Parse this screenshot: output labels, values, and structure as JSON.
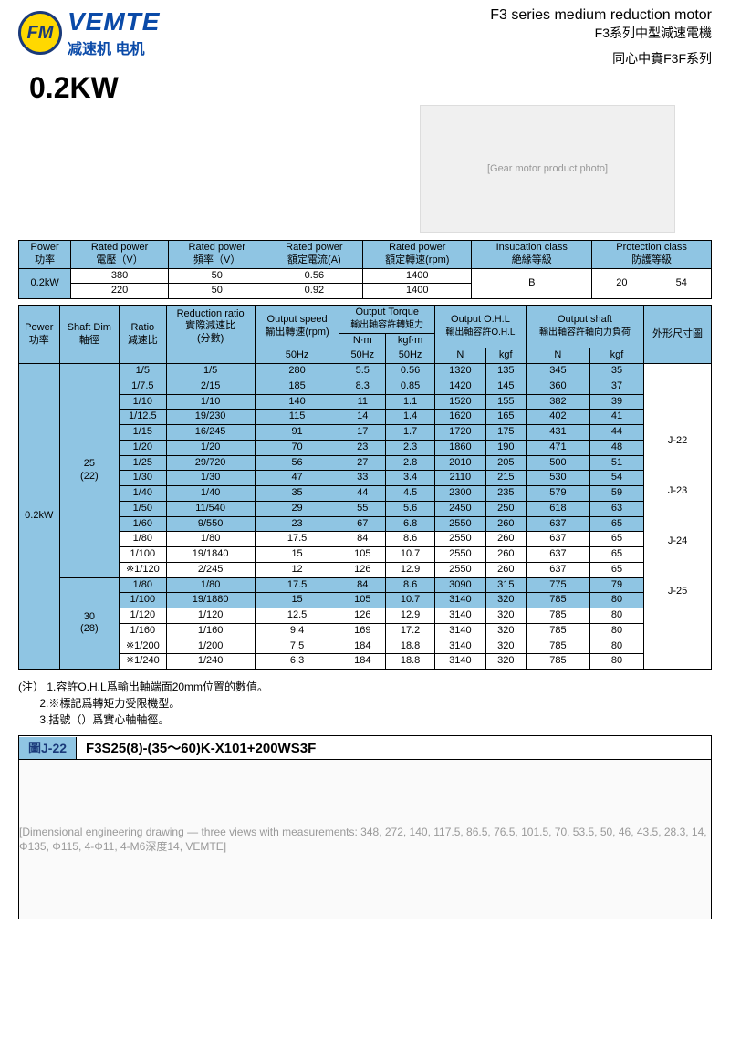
{
  "brand": {
    "logo": "FM",
    "en": "VEMTE",
    "cn": "减速机 电机"
  },
  "title": {
    "en": "F3 series medium reduction motor",
    "cn": "F3系列中型減速電機",
    "sub": "同心中實F3F系列"
  },
  "power_label": "0.2KW",
  "product_img_alt": "[Gear motor product photo]",
  "t1": {
    "h": {
      "power": "Power",
      "power_cn": "功率",
      "voltage": "Rated power",
      "voltage_cn": "電壓（V）",
      "freq": "Rated power",
      "freq_cn": "頻率（V）",
      "current": "Rated power",
      "current_cn": "額定電流(A)",
      "speed": "Rated power",
      "speed_cn": "額定轉速(rpm)",
      "ins": "Insucation class",
      "ins_cn": "絶緣等級",
      "prot": "Protection class",
      "prot_cn": "防護等級"
    },
    "power": "0.2kW",
    "r1": {
      "v": "380",
      "f": "50",
      "a": "0.56",
      "rpm": "1400"
    },
    "r2": {
      "v": "220",
      "f": "50",
      "a": "0.92",
      "rpm": "1400"
    },
    "ins": "B",
    "prot1": "20",
    "prot2": "54"
  },
  "t2h": {
    "power": "Power",
    "power_cn": "功率",
    "shaft": "Shaft Dim",
    "shaft_cn": "軸徑",
    "ratio": "Ratio",
    "ratio_cn": "減速比",
    "rr": "Reduction ratio",
    "rr_cn": "實際減速比",
    "rr_cn2": "(分數)",
    "os": "Output speed",
    "os_cn": "輸出轉速(rpm)",
    "ot": "Output Torque",
    "ot_cn": "輸出軸容許轉矩力",
    "ot_nm": "N·m",
    "ot_kgf": "kgf·m",
    "ohl": "Output O.H.L",
    "ohl_cn": "輸出軸容許O.H.L",
    "oshaft": "Output shaft",
    "oshaft_cn": "輸出軸容許軸向力負荷",
    "dim": "外形尺寸圖",
    "hz": "50Hz",
    "n": "N",
    "kgf": "kgf"
  },
  "power2": "0.2kW",
  "shaft1": "25",
  "shaft1b": "(22)",
  "shaft2": "30",
  "shaft2b": "(28)",
  "dims": {
    "d1": "J-22",
    "d2": "J-23",
    "d3": "J-24",
    "d4": "J-25"
  },
  "rows": [
    {
      "c": "b",
      "r": "1/5",
      "rr": "1/5",
      "rpm": "280",
      "nm": "5.5",
      "kgfm": "0.56",
      "ohln": "1320",
      "ohlk": "135",
      "osn": "345",
      "osk": "35"
    },
    {
      "c": "b",
      "r": "1/7.5",
      "rr": "2/15",
      "rpm": "185",
      "nm": "8.3",
      "kgfm": "0.85",
      "ohln": "1420",
      "ohlk": "145",
      "osn": "360",
      "osk": "37"
    },
    {
      "c": "b",
      "r": "1/10",
      "rr": "1/10",
      "rpm": "140",
      "nm": "11",
      "kgfm": "1.1",
      "ohln": "1520",
      "ohlk": "155",
      "osn": "382",
      "osk": "39"
    },
    {
      "c": "b",
      "r": "1/12.5",
      "rr": "19/230",
      "rpm": "115",
      "nm": "14",
      "kgfm": "1.4",
      "ohln": "1620",
      "ohlk": "165",
      "osn": "402",
      "osk": "41"
    },
    {
      "c": "b",
      "r": "1/15",
      "rr": "16/245",
      "rpm": "91",
      "nm": "17",
      "kgfm": "1.7",
      "ohln": "1720",
      "ohlk": "175",
      "osn": "431",
      "osk": "44"
    },
    {
      "c": "b",
      "r": "1/20",
      "rr": "1/20",
      "rpm": "70",
      "nm": "23",
      "kgfm": "2.3",
      "ohln": "1860",
      "ohlk": "190",
      "osn": "471",
      "osk": "48"
    },
    {
      "c": "b",
      "r": "1/25",
      "rr": "29/720",
      "rpm": "56",
      "nm": "27",
      "kgfm": "2.8",
      "ohln": "2010",
      "ohlk": "205",
      "osn": "500",
      "osk": "51"
    },
    {
      "c": "b",
      "r": "1/30",
      "rr": "1/30",
      "rpm": "47",
      "nm": "33",
      "kgfm": "3.4",
      "ohln": "2110",
      "ohlk": "215",
      "osn": "530",
      "osk": "54"
    },
    {
      "c": "b",
      "r": "1/40",
      "rr": "1/40",
      "rpm": "35",
      "nm": "44",
      "kgfm": "4.5",
      "ohln": "2300",
      "ohlk": "235",
      "osn": "579",
      "osk": "59"
    },
    {
      "c": "b",
      "r": "1/50",
      "rr": "11/540",
      "rpm": "29",
      "nm": "55",
      "kgfm": "5.6",
      "ohln": "2450",
      "ohlk": "250",
      "osn": "618",
      "osk": "63"
    },
    {
      "c": "b",
      "r": "1/60",
      "rr": "9/550",
      "rpm": "23",
      "nm": "67",
      "kgfm": "6.8",
      "ohln": "2550",
      "ohlk": "260",
      "osn": "637",
      "osk": "65"
    },
    {
      "c": "w",
      "r": "1/80",
      "rr": "1/80",
      "rpm": "17.5",
      "nm": "84",
      "kgfm": "8.6",
      "ohln": "2550",
      "ohlk": "260",
      "osn": "637",
      "osk": "65"
    },
    {
      "c": "w",
      "r": "1/100",
      "rr": "19/1840",
      "rpm": "15",
      "nm": "105",
      "kgfm": "10.7",
      "ohln": "2550",
      "ohlk": "260",
      "osn": "637",
      "osk": "65"
    },
    {
      "c": "w",
      "r": "※1/120",
      "rr": "2/245",
      "rpm": "12",
      "nm": "126",
      "kgfm": "12.9",
      "ohln": "2550",
      "ohlk": "260",
      "osn": "637",
      "osk": "65"
    }
  ],
  "rows2": [
    {
      "c": "b",
      "r": "1/80",
      "rr": "1/80",
      "rpm": "17.5",
      "nm": "84",
      "kgfm": "8.6",
      "ohln": "3090",
      "ohlk": "315",
      "osn": "775",
      "osk": "79"
    },
    {
      "c": "b",
      "r": "1/100",
      "rr": "19/1880",
      "rpm": "15",
      "nm": "105",
      "kgfm": "10.7",
      "ohln": "3140",
      "ohlk": "320",
      "osn": "785",
      "osk": "80"
    },
    {
      "c": "w",
      "r": "1/120",
      "rr": "1/120",
      "rpm": "12.5",
      "nm": "126",
      "kgfm": "12.9",
      "ohln": "3140",
      "ohlk": "320",
      "osn": "785",
      "osk": "80"
    },
    {
      "c": "w",
      "r": "1/160",
      "rr": "1/160",
      "rpm": "9.4",
      "nm": "169",
      "kgfm": "17.2",
      "ohln": "3140",
      "ohlk": "320",
      "osn": "785",
      "osk": "80"
    },
    {
      "c": "w",
      "r": "※1/200",
      "rr": "1/200",
      "rpm": "7.5",
      "nm": "184",
      "kgfm": "18.8",
      "ohln": "3140",
      "ohlk": "320",
      "osn": "785",
      "osk": "80"
    },
    {
      "c": "w",
      "r": "※1/240",
      "rr": "1/240",
      "rpm": "6.3",
      "nm": "184",
      "kgfm": "18.8",
      "ohln": "3140",
      "ohlk": "320",
      "osn": "785",
      "osk": "80"
    }
  ],
  "notes": {
    "l0": "(注）",
    "l1": "1.容許O.H.L爲輸出軸端面20mm位置的數值。",
    "l2": "2.※標記爲轉矩力受限機型。",
    "l3": "3.括號（）爲實心軸軸徑。"
  },
  "dim_section": {
    "label": "圖J-22",
    "model": "F3S25(8)-(35～60)K-X101+200WS3F",
    "drawing_alt": "[Dimensional engineering drawing — three views with measurements: 348, 272, 140, 117.5, 86.5, 76.5, 101.5, 70, 53.5, 50, 46, 43.5, 28.3, 14, Φ135, Φ115, 4-Φ11, 4-M6深度14, VEMTE]"
  }
}
